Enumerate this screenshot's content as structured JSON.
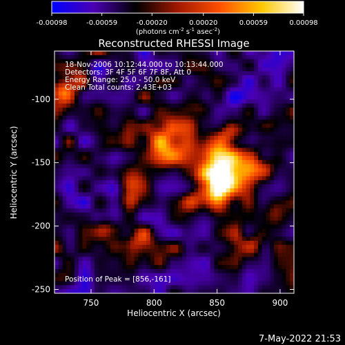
{
  "colorbar": {
    "ticks": [
      "-0.00098",
      "-0.00059",
      "-0.00020",
      "0.00020",
      "0.00059",
      "0.00098"
    ],
    "tick_values": [
      -0.00098,
      -0.00059,
      -0.0002,
      0.0002,
      0.00059,
      0.00098
    ],
    "range": [
      -0.00098,
      0.00098
    ],
    "units_main": "(photons cm",
    "units_sup1": "-2",
    "units_mid1": " s",
    "units_sup2": "-1",
    "units_mid2": " asec",
    "units_sup3": "-2",
    "units_end": ")",
    "colors": [
      "#0000ff",
      "#4b00b4",
      "#000000",
      "#a01800",
      "#ff5000",
      "#ffc800",
      "#ffffff"
    ]
  },
  "chart_data": {
    "type": "heatmap",
    "title": "Reconstructed RHESSI Image",
    "xlabel": "Heliocentric X (arcsec)",
    "ylabel": "Heliocentric Y (arcsec)",
    "xlim": [
      721,
      911
    ],
    "ylim": [
      -253,
      -62
    ],
    "x_ticks": [
      750,
      800,
      850,
      900
    ],
    "y_ticks": [
      -100,
      -150,
      -200,
      -250
    ],
    "peak": [
      856,
      -161
    ],
    "annotations": {
      "line1": "18-Nov-2006 10:12:44.000 to 10:13:44.000",
      "line2": "Detectors: 3F 4F 5F 6F 7F 8F, Att 0",
      "line3": "Energy Range: 25.0 - 50.0 keV",
      "line4": "Clean     Total counts: 2.43E+03",
      "peak_text": "Position of Peak = [856,-161]"
    }
  },
  "footer": {
    "timestamp": "7-May-2022 21:53"
  }
}
